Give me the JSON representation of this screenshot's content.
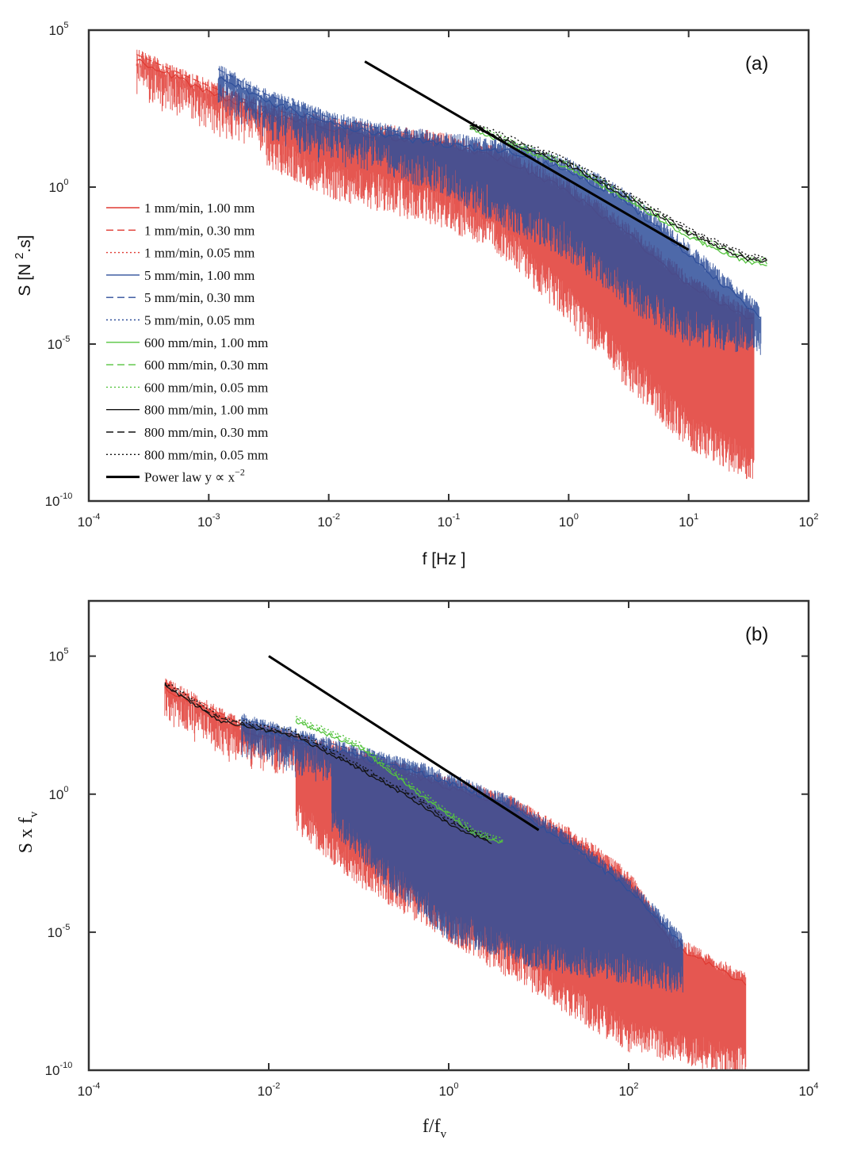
{
  "chart_data": [
    {
      "type": "line",
      "panel_label": "(a)",
      "xlabel": "f [Hz ]",
      "ylabel": "S [N",
      "ylabel_sup": "2",
      "ylabel_tail": ".s]",
      "xscale": "log",
      "yscale": "log",
      "xlim": [
        0.0001,
        100
      ],
      "ylim": [
        1e-10,
        100000
      ],
      "xticks": [
        {
          "base": "10",
          "exp": "-4"
        },
        {
          "base": "10",
          "exp": "-3"
        },
        {
          "base": "10",
          "exp": "-2"
        },
        {
          "base": "10",
          "exp": "-1"
        },
        {
          "base": "10",
          "exp": "0"
        },
        {
          "base": "10",
          "exp": "1"
        },
        {
          "base": "10",
          "exp": "2"
        }
      ],
      "yticks": [
        {
          "base": "10",
          "exp": "-10"
        },
        {
          "base": "10",
          "exp": "-5"
        },
        {
          "base": "10",
          "exp": "0"
        },
        {
          "base": "10",
          "exp": "5"
        }
      ],
      "legend_position": "left",
      "legend": [
        {
          "label": "1 mm/min, 1.00 mm",
          "color": "#e03a32",
          "dash": "solid"
        },
        {
          "label": "1 mm/min, 0.30 mm",
          "color": "#e03a32",
          "dash": "dashed"
        },
        {
          "label": "1 mm/min, 0.05 mm",
          "color": "#e03a32",
          "dash": "dotted"
        },
        {
          "label": "5 mm/min, 1.00 mm",
          "color": "#2f4f9a",
          "dash": "solid"
        },
        {
          "label": "5 mm/min, 0.30 mm",
          "color": "#2f4f9a",
          "dash": "dashed"
        },
        {
          "label": "5 mm/min, 0.05 mm",
          "color": "#2f4f9a",
          "dash": "dotted"
        },
        {
          "label": "600 mm/min, 1.00 mm",
          "color": "#55c43f",
          "dash": "solid"
        },
        {
          "label": "600 mm/min, 0.30 mm",
          "color": "#55c43f",
          "dash": "dashed"
        },
        {
          "label": "600 mm/min, 0.05 mm",
          "color": "#55c43f",
          "dash": "dotted"
        },
        {
          "label": "800 mm/min, 1.00 mm",
          "color": "#111111",
          "dash": "solid"
        },
        {
          "label": "800 mm/min, 0.30 mm",
          "color": "#111111",
          "dash": "dashed"
        },
        {
          "label": "800 mm/min, 0.05 mm",
          "color": "#111111",
          "dash": "dotted"
        },
        {
          "label": "Power law y ∝ x",
          "sup": "−2",
          "color": "#000000",
          "dash": "thick"
        }
      ],
      "series": [
        {
          "group": "1 mm/min",
          "color": "#e03a32",
          "f_range": [
            0.00025,
            35
          ],
          "upper": [
            [
              0.00025,
              15000
            ],
            [
              0.001,
              1500
            ],
            [
              0.003,
              300
            ],
            [
              0.01,
              100
            ],
            [
              0.1,
              30
            ],
            [
              0.3,
              10
            ],
            [
              1,
              1
            ],
            [
              3,
              0.05
            ],
            [
              10,
              0.001
            ],
            [
              30,
              0.0001
            ]
          ],
          "lower": [
            [
              0.003,
              10
            ],
            [
              0.01,
              1
            ],
            [
              0.1,
              0.1
            ],
            [
              0.3,
              0.01
            ],
            [
              1,
              0.0001
            ],
            [
              3,
              1e-06
            ],
            [
              10,
              1e-08
            ],
            [
              30,
              1e-09
            ]
          ]
        },
        {
          "group": "5 mm/min",
          "color": "#2f4f9a",
          "f_range": [
            0.0012,
            40
          ],
          "upper": [
            [
              0.0012,
              5000
            ],
            [
              0.003,
              800
            ],
            [
              0.01,
              150
            ],
            [
              0.03,
              60
            ],
            [
              0.1,
              30
            ],
            [
              0.3,
              20
            ],
            [
              1,
              5
            ],
            [
              3,
              0.5
            ],
            [
              10,
              0.01
            ],
            [
              40,
              0.0001
            ]
          ],
          "lower": [
            [
              0.03,
              5
            ],
            [
              0.1,
              1
            ],
            [
              0.3,
              0.1
            ],
            [
              1,
              0.01
            ],
            [
              3,
              0.0003
            ],
            [
              10,
              2e-05
            ],
            [
              40,
              1e-05
            ]
          ]
        },
        {
          "group": "600 mm/min",
          "color": "#55c43f",
          "f_range": [
            0.15,
            45
          ],
          "curve": [
            [
              0.15,
              90
            ],
            [
              0.3,
              30
            ],
            [
              1,
              5
            ],
            [
              3,
              0.5
            ],
            [
              10,
              0.03
            ],
            [
              30,
              0.005
            ],
            [
              45,
              0.004
            ]
          ]
        },
        {
          "group": "800 mm/min",
          "color": "#111111",
          "f_range": [
            0.15,
            45
          ],
          "curve": [
            [
              0.15,
              100
            ],
            [
              0.3,
              35
            ],
            [
              1,
              6
            ],
            [
              3,
              0.6
            ],
            [
              10,
              0.04
            ],
            [
              30,
              0.006
            ],
            [
              45,
              0.005
            ]
          ]
        },
        {
          "group": "power law",
          "color": "#000000",
          "points": [
            [
              0.02,
              10000
            ],
            [
              10,
              0.01
            ]
          ]
        }
      ]
    },
    {
      "type": "line",
      "panel_label": "(b)",
      "xlabel": "f/f",
      "xlabel_sub": "v",
      "ylabel": "S x f",
      "ylabel_sub": "v",
      "xscale": "log",
      "yscale": "log",
      "xlim": [
        0.0001,
        10000
      ],
      "ylim": [
        1e-10,
        10000000
      ],
      "xticks": [
        {
          "base": "10",
          "exp": "-4"
        },
        {
          "base": "10",
          "exp": "-2"
        },
        {
          "base": "10",
          "exp": "0"
        },
        {
          "base": "10",
          "exp": "2"
        },
        {
          "base": "10",
          "exp": "4"
        }
      ],
      "yticks": [
        {
          "base": "10",
          "exp": "-10"
        },
        {
          "base": "10",
          "exp": "-5"
        },
        {
          "base": "10",
          "exp": "0"
        },
        {
          "base": "10",
          "exp": "5"
        }
      ],
      "series": [
        {
          "group": "1 mm/min",
          "color": "#e03a32",
          "x_range": [
            0.0007,
            2000
          ],
          "upper": [
            [
              0.0007,
              10000
            ],
            [
              0.005,
              300
            ],
            [
              0.05,
              50
            ],
            [
              0.5,
              5
            ],
            [
              5,
              0.5
            ],
            [
              30,
              0.02
            ],
            [
              100,
              0.001
            ],
            [
              300,
              5e-06
            ],
            [
              2000,
              2e-07
            ]
          ],
          "lower": [
            [
              0.02,
              0.1
            ],
            [
              0.1,
              0.001
            ],
            [
              1,
              1e-05
            ],
            [
              10,
              1e-07
            ],
            [
              100,
              1e-09
            ],
            [
              2000,
              1e-10
            ]
          ]
        },
        {
          "group": "5 mm/min",
          "color": "#2f4f9a",
          "x_range": [
            0.005,
            400
          ],
          "upper": [
            [
              0.005,
              500
            ],
            [
              0.05,
              60
            ],
            [
              0.5,
              8
            ],
            [
              5,
              0.5
            ],
            [
              30,
              0.01
            ],
            [
              100,
              0.0005
            ],
            [
              400,
              5e-06
            ]
          ],
          "lower": [
            [
              0.05,
              0.1
            ],
            [
              0.2,
              0.001
            ],
            [
              1,
              1e-05
            ],
            [
              10,
              1e-06
            ],
            [
              100,
              3e-07
            ],
            [
              400,
              1e-07
            ]
          ]
        },
        {
          "group": "600 mm/min",
          "color": "#55c43f",
          "x_range": [
            0.02,
            4
          ],
          "curve": [
            [
              0.02,
              500
            ],
            [
              0.1,
              60
            ],
            [
              0.5,
              1
            ],
            [
              1,
              0.2
            ],
            [
              2,
              0.04
            ],
            [
              4,
              0.02
            ]
          ]
        },
        {
          "group": "800 mm/min",
          "color": "#111111",
          "x_range": [
            0.0007,
            3
          ],
          "curve": [
            [
              0.0007,
              10000
            ],
            [
              0.003,
              500
            ],
            [
              0.02,
              150
            ],
            [
              0.1,
              10
            ],
            [
              0.5,
              0.5
            ],
            [
              1,
              0.1
            ],
            [
              3,
              0.02
            ]
          ]
        },
        {
          "group": "power law",
          "color": "#000000",
          "points": [
            [
              0.01,
              100000
            ],
            [
              10,
              0.05
            ]
          ]
        }
      ]
    }
  ]
}
